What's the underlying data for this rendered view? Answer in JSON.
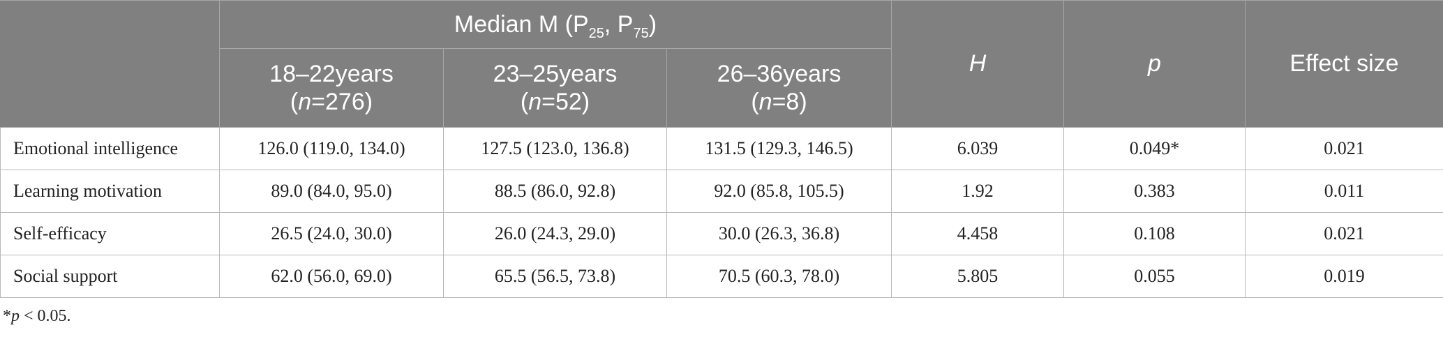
{
  "header": {
    "group_prefix": "Median M (P",
    "p25_sub": "25",
    "group_mid": ", P",
    "p75_sub": "75",
    "group_suffix": ")",
    "groups": [
      {
        "label": "18–22years",
        "n_prefix": "(",
        "n_symbol": "n",
        "n_value": "=276)"
      },
      {
        "label": "23–25years",
        "n_prefix": "(",
        "n_symbol": "n",
        "n_value": "=52)"
      },
      {
        "label": "26–36years",
        "n_prefix": "(",
        "n_symbol": "n",
        "n_value": "=8)"
      }
    ],
    "h_label": "H",
    "p_label": "p",
    "effect_label": "Effect size"
  },
  "rows": [
    {
      "label": "Emotional intelligence",
      "g1": "126.0 (119.0, 134.0)",
      "g2": "127.5 (123.0, 136.8)",
      "g3": "131.5 (129.3, 146.5)",
      "h": "6.039",
      "p": "0.049*",
      "effect": "0.021"
    },
    {
      "label": "Learning motivation",
      "g1": "89.0 (84.0, 95.0)",
      "g2": "88.5 (86.0, 92.8)",
      "g3": "92.0 (85.8, 105.5)",
      "h": "1.92",
      "p": "0.383",
      "effect": "0.011"
    },
    {
      "label": "Self-efficacy",
      "g1": "26.5 (24.0, 30.0)",
      "g2": "26.0 (24.3, 29.0)",
      "g3": "30.0 (26.3, 36.8)",
      "h": "4.458",
      "p": "0.108",
      "effect": "0.021"
    },
    {
      "label": "Social support",
      "g1": "62.0 (56.0, 69.0)",
      "g2": "65.5 (56.5, 73.8)",
      "g3": "70.5 (60.3, 78.0)",
      "h": "5.805",
      "p": "0.055",
      "effect": "0.019"
    }
  ],
  "footnote": {
    "star": "*",
    "symbol": "p",
    "text": " < 0.05."
  }
}
